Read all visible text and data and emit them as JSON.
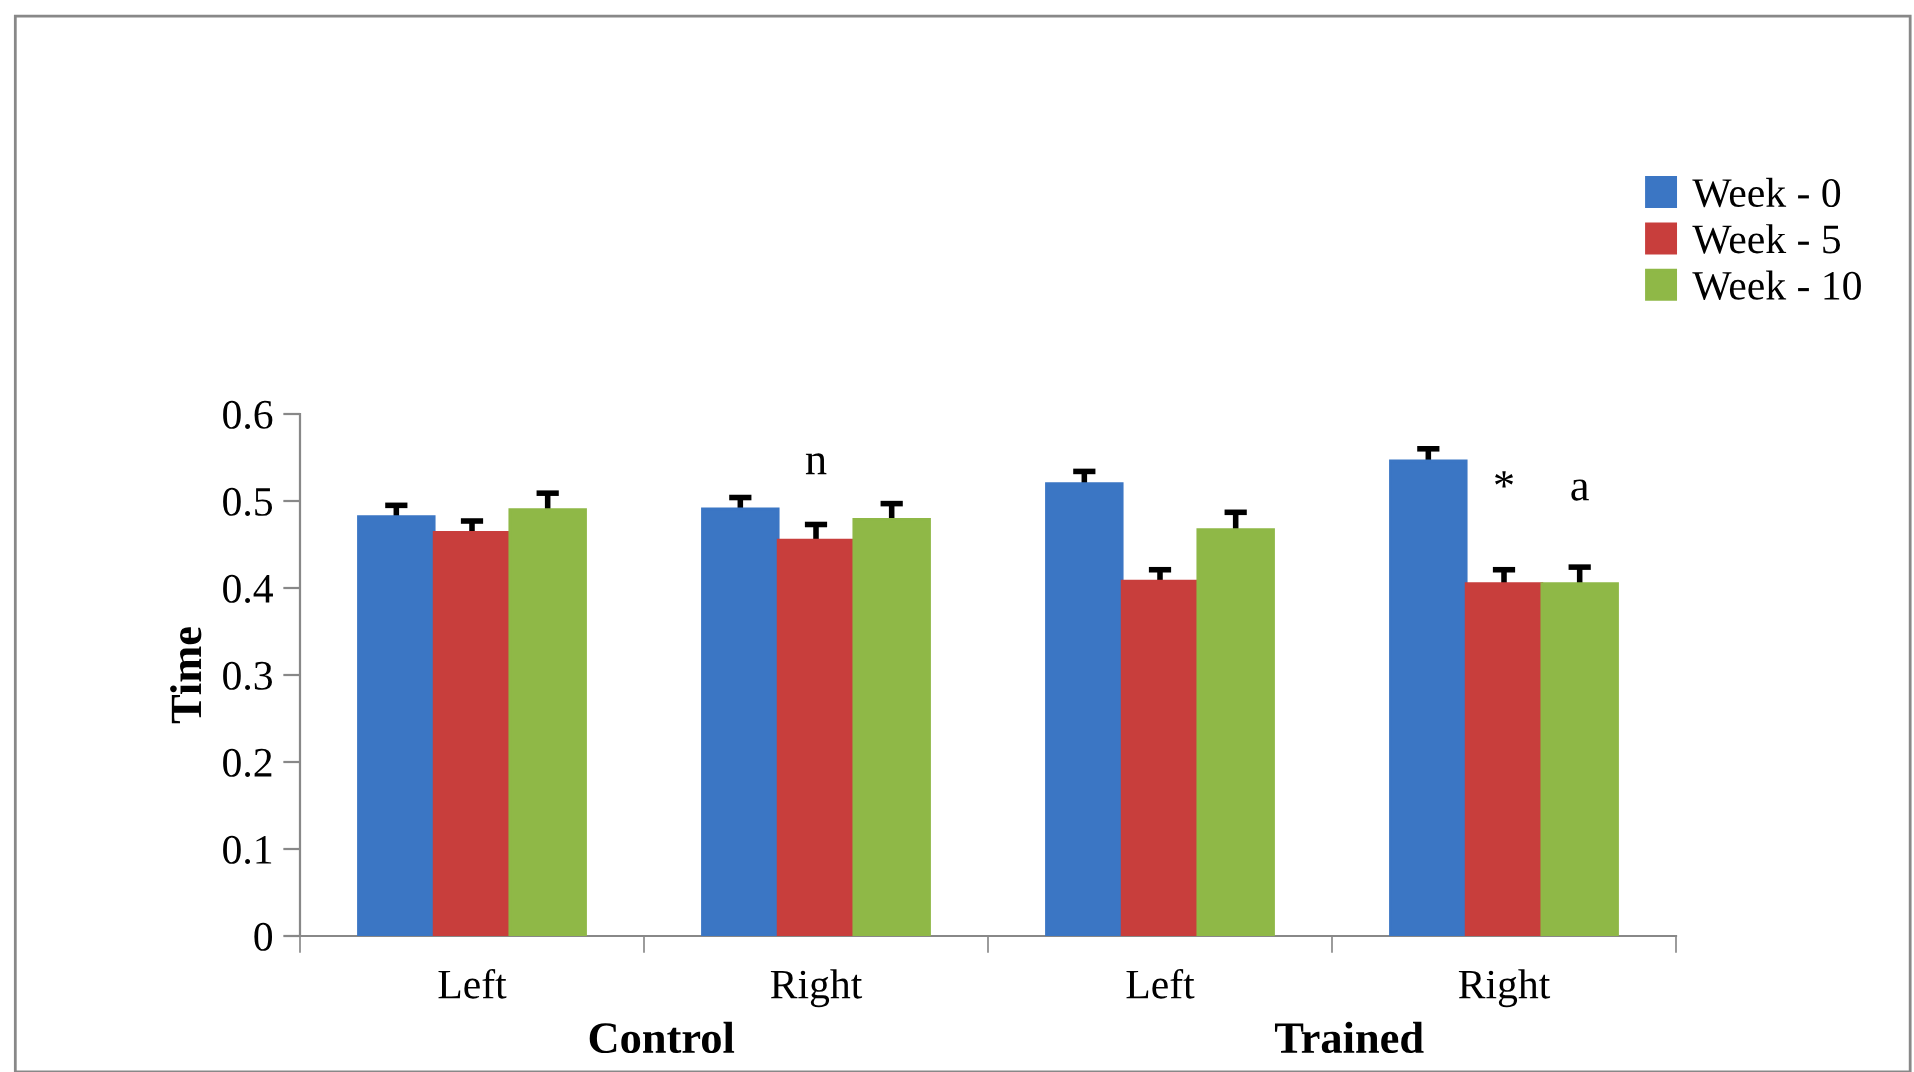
{
  "chart_data": {
    "type": "bar",
    "ylabel": "Time",
    "categories": [
      "Left",
      "Right",
      "Left",
      "Right"
    ],
    "series": [
      {
        "name": "Week - 0",
        "color": "#3b76c4",
        "values": [
          0.482,
          0.491,
          0.52,
          0.546
        ],
        "errors": [
          0.013,
          0.013,
          0.014,
          0.014
        ]
      },
      {
        "name": "Week - 5",
        "color": "#c83e3c",
        "values": [
          0.464,
          0.455,
          0.408,
          0.405
        ],
        "errors": [
          0.013,
          0.018,
          0.013,
          0.016
        ]
      },
      {
        "name": "Week - 10",
        "color": "#8fb847",
        "values": [
          0.49,
          0.479,
          0.467,
          0.405
        ],
        "errors": [
          0.019,
          0.018,
          0.02,
          0.019
        ]
      }
    ],
    "annotations": [
      "Control",
      "Trained",
      "n",
      "*",
      "a"
    ],
    "ylim": [
      0,
      0.6
    ],
    "yticks": [
      0,
      0.1,
      0.2,
      0.3,
      0.4,
      0.5,
      0.6
    ],
    "grid": false,
    "legend": "top right"
  }
}
